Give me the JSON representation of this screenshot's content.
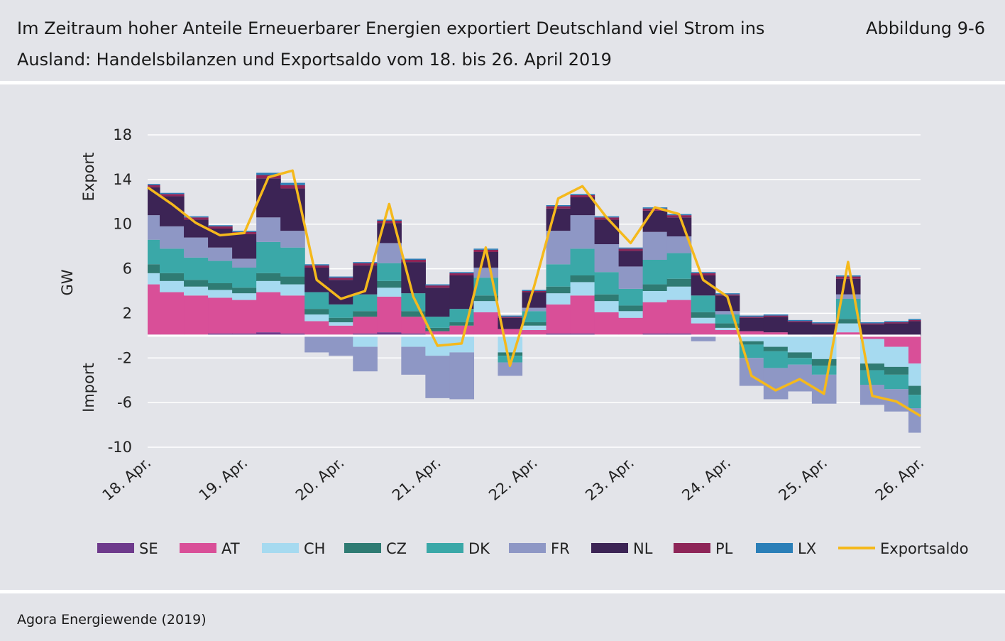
{
  "header": {
    "title": "Im Zeitraum hoher Anteile Erneuerbarer Energien exportiert Deutschland viel Strom ins Ausland: Handelsbilanzen und Exportsaldo vom 18. bis 26. April 2019",
    "figure_label": "Abbildung 9-6"
  },
  "footer": {
    "source": "Agora Energiewende (2019)"
  },
  "chart_data": {
    "type": "area",
    "ylabel": "GW",
    "ylabel_top": "Export",
    "ylabel_bottom": "Import",
    "ylim": [
      -10,
      18
    ],
    "yticks": [
      18,
      14,
      10,
      6,
      2,
      -2,
      -6,
      -10
    ],
    "grid": true,
    "legend_position": "bottom",
    "x_tick_labels": [
      "18. Apr.",
      "19. Apr.",
      "20. Apr.",
      "21. Apr.",
      "22. Apr.",
      "23. Apr.",
      "24. Apr.",
      "25. Apr.",
      "26. Apr."
    ],
    "x": [
      "18.04.",
      "18.04. 06h",
      "18.04. 12h",
      "18.04. 18h",
      "19.04.",
      "19.04. 06h",
      "19.04. 12h",
      "19.04. 18h",
      "20.04.",
      "20.04. 06h",
      "20.04. 12h",
      "20.04. 18h",
      "21.04.",
      "21.04. 06h",
      "21.04. 12h",
      "21.04. 18h",
      "22.04.",
      "22.04. 06h",
      "22.04. 12h",
      "22.04. 18h",
      "23.04.",
      "23.04. 06h",
      "23.04. 12h",
      "23.04. 18h",
      "24.04.",
      "24.04. 06h",
      "24.04. 12h",
      "24.04. 18h",
      "25.04.",
      "25.04. 06h",
      "25.04. 12h",
      "25.04. 18h",
      "26.04."
    ],
    "series": [
      {
        "name": "SE",
        "color": "#6e3a8c",
        "values": [
          0.1,
          0.1,
          0.1,
          0.2,
          0.2,
          0.3,
          0.2,
          0.1,
          0.1,
          0.2,
          0.3,
          0.2,
          0.1,
          0.1,
          0.1,
          0.1,
          0.1,
          0.2,
          0.2,
          0.1,
          0.1,
          0.2,
          0.2,
          0.1,
          0.1,
          0.1,
          0.1,
          0.0,
          0.0,
          0.1,
          0.0,
          0.0,
          0.0
        ]
      },
      {
        "name": "AT",
        "color": "#d94f98",
        "values": [
          4.5,
          3.8,
          3.5,
          3.2,
          3.0,
          3.6,
          3.4,
          1.2,
          0.8,
          1.5,
          3.2,
          1.5,
          0.3,
          0.8,
          2.0,
          0.5,
          0.4,
          2.6,
          3.4,
          2.0,
          1.5,
          2.8,
          3.0,
          1.0,
          0.4,
          0.3,
          0.2,
          0.0,
          -0.1,
          0.2,
          -0.3,
          -1.0,
          -2.5
        ]
      },
      {
        "name": "CH",
        "color": "#a6daf0",
        "values": [
          1.0,
          1.0,
          0.8,
          0.7,
          0.6,
          1.0,
          1.0,
          0.6,
          0.3,
          -1.0,
          0.8,
          -1.0,
          -1.8,
          -1.5,
          1.0,
          -1.5,
          0.4,
          1.0,
          1.2,
          1.0,
          0.6,
          1.0,
          1.2,
          0.5,
          0.2,
          -0.5,
          -1.0,
          -1.5,
          -2.0,
          0.8,
          -2.2,
          -1.8,
          -2.0
        ]
      },
      {
        "name": "CZ",
        "color": "#2f7b73",
        "values": [
          0.8,
          0.7,
          0.6,
          0.6,
          0.5,
          0.7,
          0.7,
          0.5,
          0.4,
          0.5,
          0.6,
          0.5,
          0.3,
          0.3,
          0.5,
          -0.3,
          0.3,
          0.6,
          0.6,
          0.6,
          0.5,
          0.6,
          0.7,
          0.5,
          0.4,
          -0.3,
          -0.4,
          -0.5,
          -0.6,
          0.4,
          -0.6,
          -0.7,
          -0.8
        ]
      },
      {
        "name": "DK",
        "color": "#3aa8a8",
        "values": [
          2.2,
          2.2,
          2.0,
          2.0,
          1.8,
          2.8,
          2.6,
          1.5,
          1.2,
          1.5,
          1.6,
          1.6,
          1.0,
          1.2,
          1.6,
          -0.6,
          1.0,
          2.0,
          2.4,
          2.0,
          1.5,
          2.2,
          2.3,
          1.5,
          0.8,
          -1.2,
          -1.5,
          -0.6,
          -0.8,
          1.8,
          -1.3,
          -1.3,
          -1.2
        ]
      },
      {
        "name": "FR",
        "color": "#8e97c5",
        "values": [
          2.2,
          2.0,
          1.8,
          1.2,
          0.8,
          2.2,
          1.5,
          -1.5,
          -1.8,
          -2.2,
          1.8,
          -2.5,
          -3.8,
          -4.2,
          0.9,
          -1.2,
          0.3,
          3.0,
          3.0,
          2.5,
          2.0,
          2.5,
          1.5,
          -0.5,
          0.3,
          -2.5,
          -2.8,
          -2.4,
          -2.6,
          0.4,
          -1.8,
          -2.0,
          -2.2
        ]
      },
      {
        "name": "NL",
        "color": "#3c2455",
        "values": [
          2.5,
          2.7,
          1.6,
          1.7,
          2.2,
          3.5,
          3.8,
          2.2,
          2.2,
          2.6,
          1.8,
          2.8,
          2.6,
          3.0,
          1.4,
          1.0,
          1.4,
          2.0,
          1.6,
          2.2,
          1.4,
          1.9,
          1.7,
          1.8,
          1.4,
          1.2,
          1.4,
          1.2,
          1.0,
          1.4,
          1.0,
          1.1,
          1.3
        ]
      },
      {
        "name": "PL",
        "color": "#8e2558",
        "values": [
          0.2,
          0.2,
          0.2,
          0.2,
          0.2,
          0.3,
          0.3,
          0.2,
          0.2,
          0.2,
          0.2,
          0.2,
          0.2,
          0.2,
          0.2,
          0.1,
          0.1,
          0.2,
          0.2,
          0.2,
          0.2,
          0.2,
          0.2,
          0.2,
          0.1,
          0.1,
          0.1,
          0.1,
          0.1,
          0.2,
          0.1,
          0.1,
          0.1
        ]
      },
      {
        "name": "LX",
        "color": "#2b7fb8",
        "values": [
          0.1,
          0.1,
          0.1,
          0.1,
          0.1,
          0.2,
          0.2,
          0.1,
          0.1,
          0.1,
          0.1,
          0.1,
          0.1,
          0.1,
          0.1,
          0.1,
          0.1,
          0.1,
          0.1,
          0.1,
          0.1,
          0.1,
          0.1,
          0.1,
          0.1,
          0.1,
          0.1,
          0.1,
          0.1,
          0.1,
          0.1,
          0.1,
          0.1
        ]
      }
    ],
    "line_series": {
      "name": "Exportsaldo",
      "color": "#f5b91c",
      "values": [
        13.3,
        11.8,
        10.1,
        9.0,
        9.2,
        14.2,
        14.8,
        5.0,
        3.3,
        4.0,
        11.8,
        3.5,
        -0.9,
        -0.7,
        7.9,
        -2.7,
        4.4,
        12.3,
        13.4,
        10.6,
        8.3,
        11.5,
        10.9,
        5.0,
        3.5,
        -3.6,
        -4.9,
        -3.9,
        -5.2,
        6.6,
        -5.4,
        -5.9,
        -7.2
      ]
    }
  },
  "legend_layout": {
    "text_width_factor": 11.2
  }
}
